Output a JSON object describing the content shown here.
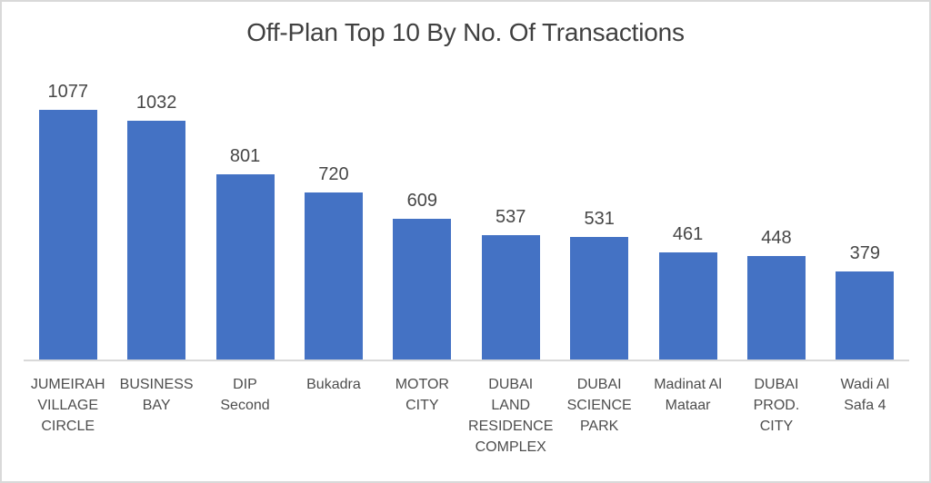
{
  "window": {
    "background": "#ffffff",
    "border_color": "#d9d9d9"
  },
  "chart_data": {
    "type": "bar",
    "title": "Off-Plan Top 10 By No. Of Transactions",
    "categories": [
      "JUMEIRAH VILLAGE CIRCLE",
      "BUSINESS BAY",
      "DIP Second",
      "Bukadra",
      "MOTOR CITY",
      "DUBAI LAND RESIDENCE COMPLEX",
      "DUBAI SCIENCE PARK",
      "Madinat Al Mataar",
      "DUBAI PROD. CITY",
      "Wadi Al Safa 4"
    ],
    "category_display_lines": [
      [
        "JUMEIRAH",
        "VILLAGE",
        "CIRCLE"
      ],
      [
        "BUSINESS",
        "BAY"
      ],
      [
        "DIP",
        "Second"
      ],
      [
        "Bukadra"
      ],
      [
        "MOTOR",
        "CITY"
      ],
      [
        "DUBAI",
        "LAND",
        "RESIDENCE",
        "COMPLEX"
      ],
      [
        "DUBAI",
        "SCIENCE",
        "PARK"
      ],
      [
        "Madinat Al",
        "Mataar"
      ],
      [
        "DUBAI",
        "PROD.",
        "CITY"
      ],
      [
        "Wadi Al",
        "Safa 4"
      ]
    ],
    "values": [
      1077,
      1032,
      801,
      720,
      609,
      537,
      531,
      461,
      448,
      379
    ],
    "data_labels": true,
    "xlabel": "",
    "ylabel": "",
    "ylim": [
      0,
      1200
    ],
    "grid": false,
    "legend": false,
    "bar_color": "#4472c4",
    "axis_line_color": "#d9d9d9",
    "title_color": "#404040",
    "value_label_color": "#474747",
    "category_label_color": "#4d4d4d"
  }
}
